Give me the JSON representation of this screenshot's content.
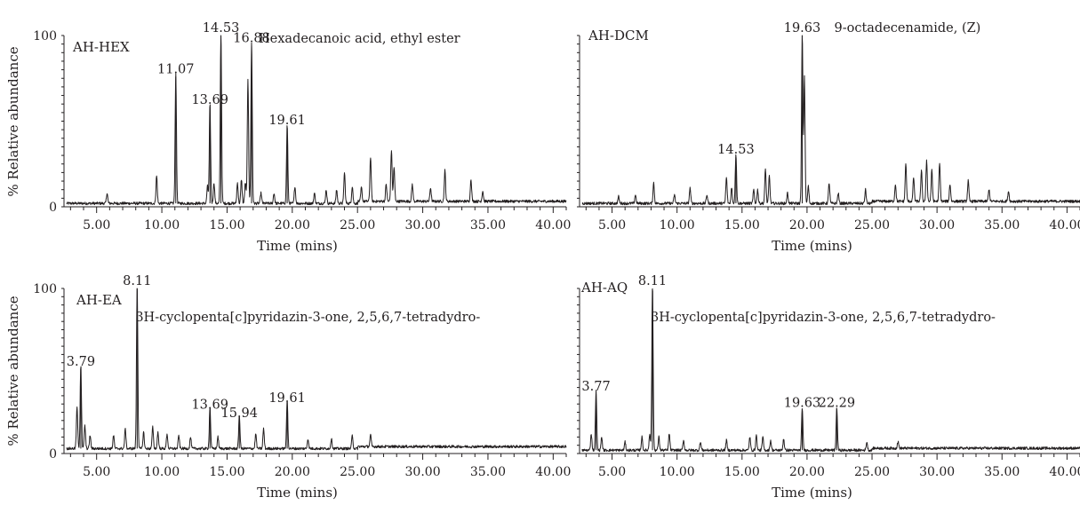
{
  "chart_data": [
    {
      "type": "line",
      "sample_label": "AH-HEX",
      "xlabel": "Time (mins)",
      "ylabel": "% Relative abundance",
      "xlim": [
        2.5,
        41.0
      ],
      "ylim": [
        0,
        100
      ],
      "x_ticks": [
        "5.00",
        "10.00",
        "15.00",
        "20.00",
        "25.00",
        "30.00",
        "35.00",
        "40.00"
      ],
      "y_ticks": [
        "0",
        "100"
      ],
      "baseline": 2,
      "peaks": [
        {
          "x": 5.8,
          "y": 6
        },
        {
          "x": 9.6,
          "y": 16
        },
        {
          "x": 11.07,
          "y": 76,
          "label": "11.07"
        },
        {
          "x": 13.5,
          "y": 10
        },
        {
          "x": 13.69,
          "y": 58,
          "label": "13.69"
        },
        {
          "x": 14.0,
          "y": 12
        },
        {
          "x": 14.53,
          "y": 100,
          "label": "14.53"
        },
        {
          "x": 15.8,
          "y": 12
        },
        {
          "x": 16.1,
          "y": 14
        },
        {
          "x": 16.4,
          "y": 12
        },
        {
          "x": 16.6,
          "y": 72
        },
        {
          "x": 16.88,
          "y": 94,
          "label": "16.88"
        },
        {
          "x": 17.6,
          "y": 6
        },
        {
          "x": 18.6,
          "y": 6
        },
        {
          "x": 19.61,
          "y": 46,
          "label": "19.61"
        },
        {
          "x": 20.2,
          "y": 10
        },
        {
          "x": 21.7,
          "y": 6
        },
        {
          "x": 22.6,
          "y": 8
        },
        {
          "x": 23.4,
          "y": 8
        },
        {
          "x": 24.0,
          "y": 18
        },
        {
          "x": 24.6,
          "y": 10
        },
        {
          "x": 25.3,
          "y": 8
        },
        {
          "x": 26.0,
          "y": 26
        },
        {
          "x": 27.2,
          "y": 10
        },
        {
          "x": 27.6,
          "y": 30
        },
        {
          "x": 27.8,
          "y": 20
        },
        {
          "x": 29.2,
          "y": 10
        },
        {
          "x": 30.6,
          "y": 8
        },
        {
          "x": 31.7,
          "y": 18
        },
        {
          "x": 33.7,
          "y": 13
        },
        {
          "x": 34.6,
          "y": 6
        }
      ],
      "annotations": [
        {
          "text": "Hexadecanoic acid, ethyl ester",
          "x": 16.88
        }
      ]
    },
    {
      "type": "line",
      "sample_label": "AH-DCM",
      "xlabel": "Time (mins)",
      "ylabel": "",
      "xlim": [
        2.5,
        41.0
      ],
      "ylim": [
        0,
        100
      ],
      "x_ticks": [
        "5.00",
        "10.00",
        "15.00",
        "20.00",
        "25.00",
        "30.00",
        "35.00",
        "40.00"
      ],
      "y_ticks": [],
      "baseline": 2,
      "peaks": [
        {
          "x": 5.5,
          "y": 4
        },
        {
          "x": 6.8,
          "y": 5
        },
        {
          "x": 8.2,
          "y": 12
        },
        {
          "x": 9.8,
          "y": 5
        },
        {
          "x": 11.0,
          "y": 9
        },
        {
          "x": 12.3,
          "y": 5
        },
        {
          "x": 13.8,
          "y": 15
        },
        {
          "x": 14.2,
          "y": 9
        },
        {
          "x": 14.53,
          "y": 29,
          "label": "14.53"
        },
        {
          "x": 15.9,
          "y": 8
        },
        {
          "x": 16.2,
          "y": 8
        },
        {
          "x": 16.8,
          "y": 20
        },
        {
          "x": 17.1,
          "y": 16
        },
        {
          "x": 18.5,
          "y": 6
        },
        {
          "x": 19.63,
          "y": 100,
          "label": "19.63"
        },
        {
          "x": 19.8,
          "y": 74
        },
        {
          "x": 20.1,
          "y": 10
        },
        {
          "x": 21.7,
          "y": 12
        },
        {
          "x": 22.4,
          "y": 6
        },
        {
          "x": 24.5,
          "y": 8
        },
        {
          "x": 26.8,
          "y": 10
        },
        {
          "x": 27.6,
          "y": 22
        },
        {
          "x": 28.2,
          "y": 14
        },
        {
          "x": 28.8,
          "y": 18
        },
        {
          "x": 29.2,
          "y": 24
        },
        {
          "x": 29.6,
          "y": 18
        },
        {
          "x": 30.2,
          "y": 22
        },
        {
          "x": 31.0,
          "y": 10
        },
        {
          "x": 32.4,
          "y": 12
        },
        {
          "x": 34.0,
          "y": 7
        },
        {
          "x": 35.5,
          "y": 6
        }
      ],
      "annotations": [
        {
          "text": "9-octadecenamide, (Z)",
          "x": 19.63
        }
      ]
    },
    {
      "type": "line",
      "sample_label": "AH-EA",
      "xlabel": "Time (mins)",
      "ylabel": "% Relative abundance",
      "xlim": [
        2.5,
        41.0
      ],
      "ylim": [
        0,
        100
      ],
      "x_ticks": [
        "5.00",
        "10.00",
        "15.00",
        "20.00",
        "25.00",
        "30.00",
        "35.00",
        "40.00"
      ],
      "y_ticks": [
        "0",
        "100"
      ],
      "baseline": 3,
      "peaks": [
        {
          "x": 3.5,
          "y": 25
        },
        {
          "x": 3.79,
          "y": 51,
          "label": "3.79"
        },
        {
          "x": 4.1,
          "y": 14
        },
        {
          "x": 4.5,
          "y": 8
        },
        {
          "x": 6.3,
          "y": 8
        },
        {
          "x": 7.2,
          "y": 12
        },
        {
          "x": 8.11,
          "y": 100,
          "label": "8.11"
        },
        {
          "x": 8.6,
          "y": 10
        },
        {
          "x": 9.3,
          "y": 13
        },
        {
          "x": 9.7,
          "y": 10
        },
        {
          "x": 10.4,
          "y": 9
        },
        {
          "x": 11.3,
          "y": 8
        },
        {
          "x": 12.2,
          "y": 7
        },
        {
          "x": 13.69,
          "y": 25,
          "label": "13.69"
        },
        {
          "x": 14.3,
          "y": 7
        },
        {
          "x": 15.94,
          "y": 20,
          "label": "15.94"
        },
        {
          "x": 17.2,
          "y": 9
        },
        {
          "x": 17.8,
          "y": 12
        },
        {
          "x": 19.61,
          "y": 29,
          "label": "19.61"
        },
        {
          "x": 21.2,
          "y": 6
        },
        {
          "x": 23.0,
          "y": 6
        },
        {
          "x": 24.6,
          "y": 8
        },
        {
          "x": 26.0,
          "y": 7
        }
      ],
      "annotations": [
        {
          "text": "3H-cyclopenta[c]pyridazin-3-one, 2,5,6,7-tetradydro-",
          "x": 8.11
        }
      ]
    },
    {
      "type": "line",
      "sample_label": "AH-AQ",
      "xlabel": "Time (mins)",
      "ylabel": "",
      "xlim": [
        2.5,
        41.0
      ],
      "ylim": [
        0,
        100
      ],
      "x_ticks": [
        "5.00",
        "10.00",
        "15.00",
        "20.00",
        "25.00",
        "30.00",
        "35.00",
        "40.00"
      ],
      "y_ticks": [],
      "baseline": 2,
      "peaks": [
        {
          "x": 3.4,
          "y": 10
        },
        {
          "x": 3.77,
          "y": 36,
          "label": "3.77"
        },
        {
          "x": 4.2,
          "y": 8
        },
        {
          "x": 6.0,
          "y": 5
        },
        {
          "x": 7.3,
          "y": 8
        },
        {
          "x": 7.9,
          "y": 10
        },
        {
          "x": 8.11,
          "y": 100,
          "label": "8.11"
        },
        {
          "x": 8.6,
          "y": 8
        },
        {
          "x": 9.4,
          "y": 10
        },
        {
          "x": 10.5,
          "y": 6
        },
        {
          "x": 11.8,
          "y": 5
        },
        {
          "x": 13.8,
          "y": 6
        },
        {
          "x": 15.6,
          "y": 8
        },
        {
          "x": 16.1,
          "y": 9
        },
        {
          "x": 16.6,
          "y": 8
        },
        {
          "x": 17.2,
          "y": 6
        },
        {
          "x": 18.2,
          "y": 7
        },
        {
          "x": 19.63,
          "y": 26,
          "label": "19.63"
        },
        {
          "x": 22.29,
          "y": 26,
          "label": "22.29"
        },
        {
          "x": 24.6,
          "y": 5
        },
        {
          "x": 27.0,
          "y": 4
        }
      ],
      "annotations": [
        {
          "text": "3H-cyclopenta[c]pyridazin-3-one, 2,5,6,7-tetradydro-",
          "x": 8.11
        }
      ]
    }
  ]
}
